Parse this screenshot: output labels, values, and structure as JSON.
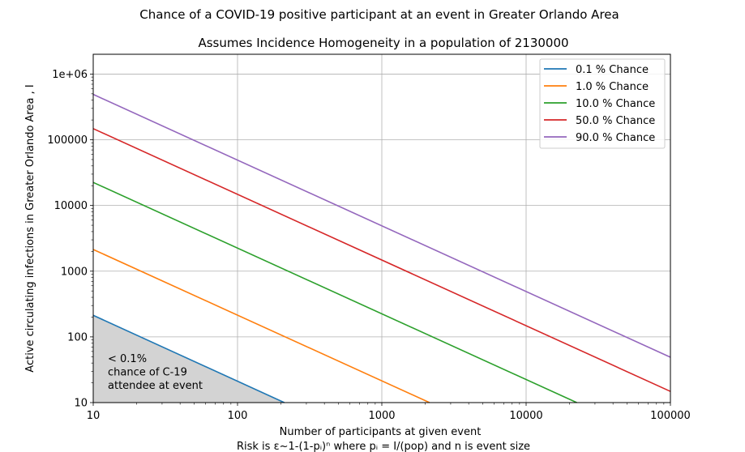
{
  "chart_data": {
    "type": "line",
    "title": "Chance of a COVID-19 positive participant at an event in Greater Orlando Area",
    "subtitle": "Assumes Incidence Homogeneity in a population of 2130000",
    "xlabel": "Number of participants at given event",
    "xlabel_note": "Risk is ε~1-(1-pᵢ)ⁿ where pᵢ = I/(pop) and n is event size",
    "ylabel": "Active circulating infections in Greater Orlando Area , I",
    "x_scale": "log",
    "y_scale": "log",
    "xlim": [
      10,
      100000
    ],
    "ylim": [
      10,
      2000000
    ],
    "grid": true,
    "legend_position": "top-right",
    "x_ticks": [
      {
        "value": 10,
        "label": "10"
      },
      {
        "value": 100,
        "label": "100"
      },
      {
        "value": 1000,
        "label": "1000"
      },
      {
        "value": 10000,
        "label": "10000"
      },
      {
        "value": 100000,
        "label": "100000"
      }
    ],
    "y_ticks": [
      {
        "value": 10,
        "label": "10"
      },
      {
        "value": 100,
        "label": "100"
      },
      {
        "value": 1000,
        "label": "1000"
      },
      {
        "value": 10000,
        "label": "10000"
      },
      {
        "value": 100000,
        "label": "100000"
      },
      {
        "value": 1000000,
        "label": "1e+06"
      }
    ],
    "series": [
      {
        "name": "0.1 % Chance",
        "color": "#1f77b4",
        "x": [
          10,
          211
        ],
        "y": [
          213,
          10
        ]
      },
      {
        "name": "1.0 % Chance",
        "color": "#ff7f0e",
        "x": [
          10,
          2141
        ],
        "y": [
          2140,
          10
        ]
      },
      {
        "name": "10.0 % Chance",
        "color": "#2ca02c",
        "x": [
          10,
          22440
        ],
        "y": [
          22440,
          10
        ]
      },
      {
        "name": "50.0 % Chance",
        "color": "#d62728",
        "x": [
          10,
          100000
        ],
        "y": [
          147600,
          14.8
        ]
      },
      {
        "name": "90.0 % Chance",
        "color": "#9467bd",
        "x": [
          10,
          100000
        ],
        "y": [
          490300,
          49
        ]
      }
    ],
    "shaded_region": {
      "color": "#d3d3d3",
      "x": [
        10,
        211
      ],
      "y": [
        213,
        10
      ],
      "label_lines": [
        "< 0.1%",
        "chance of C-19",
        "attendee at event"
      ]
    }
  }
}
